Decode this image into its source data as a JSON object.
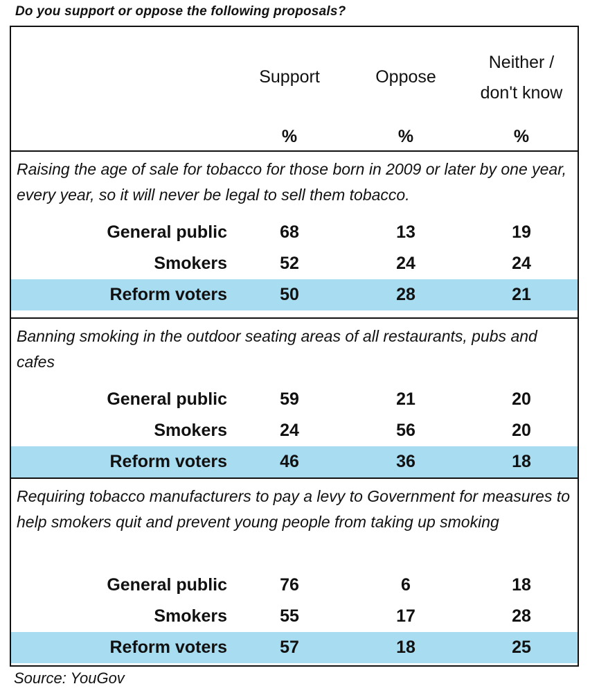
{
  "title": "Do you support or oppose the following proposals?",
  "chart_data": {
    "type": "table",
    "title": "Do you support or oppose the following proposals?",
    "columns": [
      {
        "label": "Support",
        "unit": "%"
      },
      {
        "label": "Oppose",
        "unit": "%"
      },
      {
        "label": "Neither / don't know",
        "unit": "%"
      }
    ],
    "column_labels_display": [
      [
        "Support"
      ],
      [
        "Oppose"
      ],
      [
        "Neither /",
        "don't know"
      ]
    ],
    "highlight_color": "#a8dcf1",
    "questions": [
      {
        "text": "Raising the age of sale for tobacco for those born in 2009 or later by one year, every year, so it will never be legal to sell them tobacco.",
        "rows": [
          {
            "group": "General public",
            "values": [
              68,
              13,
              19
            ],
            "highlight": false
          },
          {
            "group": "Smokers",
            "values": [
              52,
              24,
              24
            ],
            "highlight": false
          },
          {
            "group": "Reform voters",
            "values": [
              50,
              28,
              21
            ],
            "highlight": true
          }
        ]
      },
      {
        "text": "Banning smoking in the outdoor seating areas of all restaurants, pubs and cafes",
        "rows": [
          {
            "group": "General public",
            "values": [
              59,
              21,
              20
            ],
            "highlight": false
          },
          {
            "group": "Smokers",
            "values": [
              24,
              56,
              20
            ],
            "highlight": false
          },
          {
            "group": "Reform voters",
            "values": [
              46,
              36,
              18
            ],
            "highlight": true
          }
        ]
      },
      {
        "text": "Requiring tobacco manufacturers to pay a levy to Government for measures to help smokers quit and prevent young people from taking up smoking",
        "rows": [
          {
            "group": "General public",
            "values": [
              76,
              6,
              18
            ],
            "highlight": false
          },
          {
            "group": "Smokers",
            "values": [
              55,
              17,
              28
            ],
            "highlight": false
          },
          {
            "group": "Reform voters",
            "values": [
              57,
              18,
              25
            ],
            "highlight": true
          }
        ]
      }
    ]
  },
  "source": "Source: YouGov"
}
